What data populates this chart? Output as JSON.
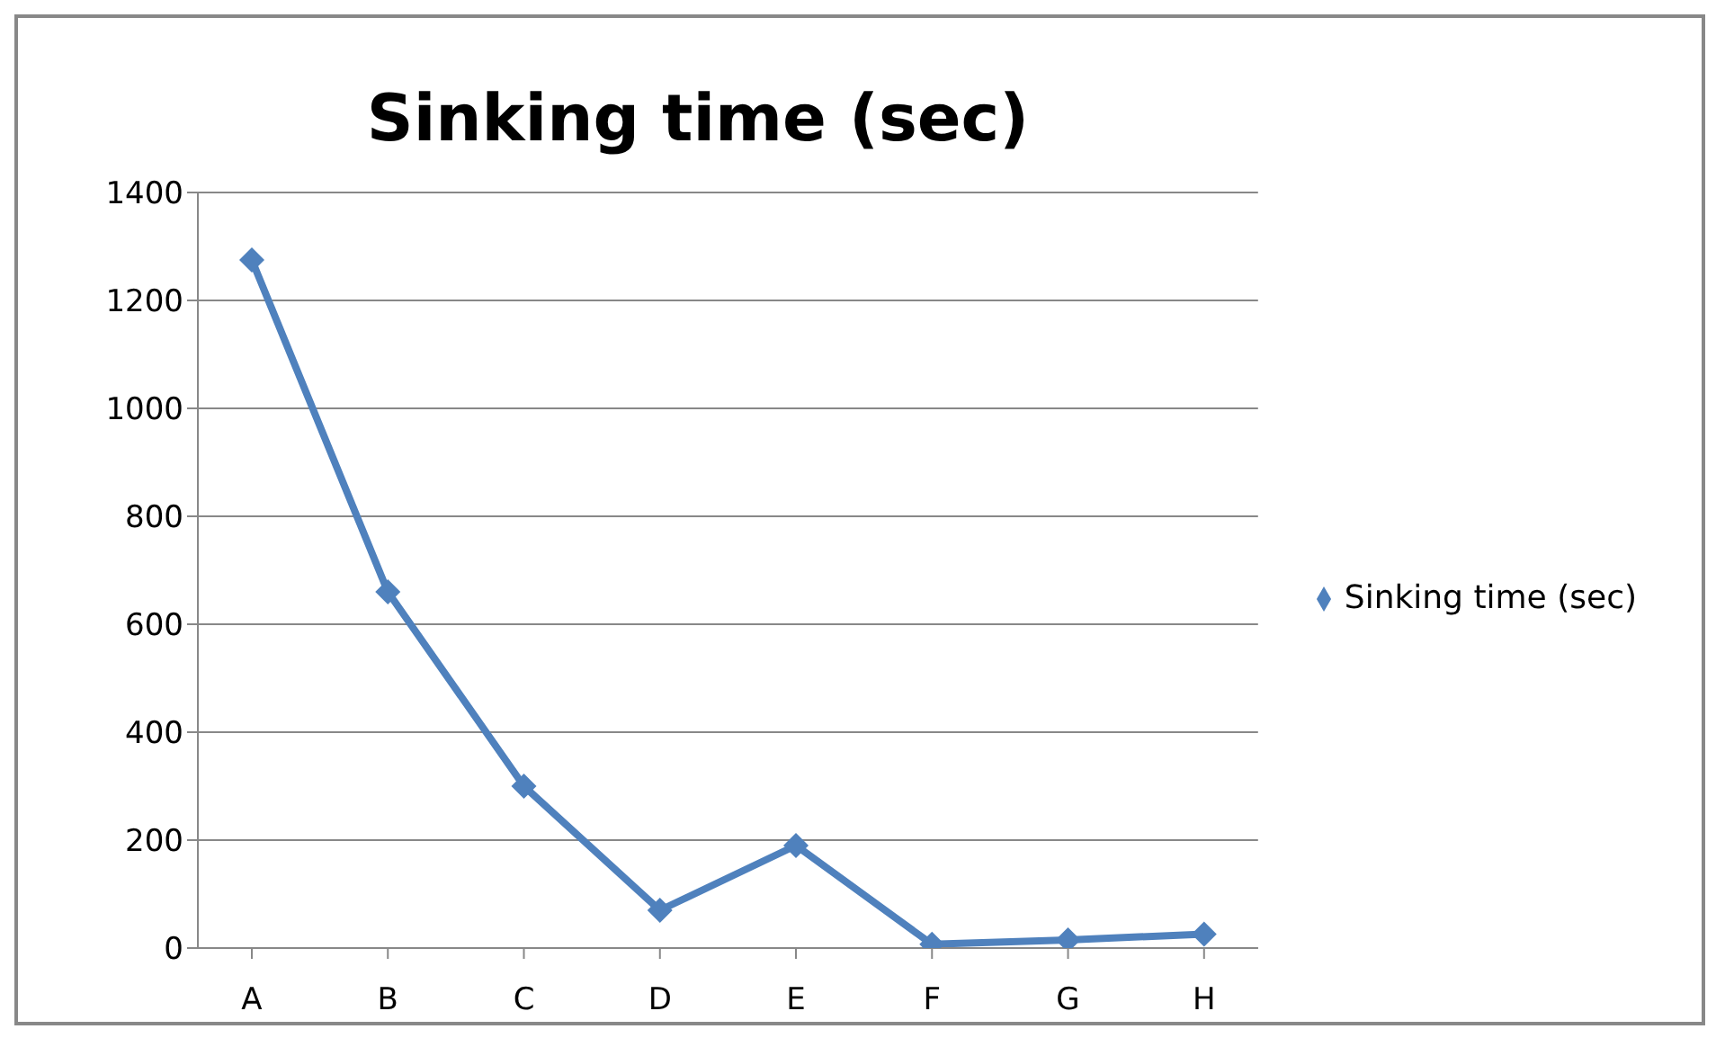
{
  "chart_data": {
    "type": "line",
    "title": "Sinking time (sec)",
    "categories": [
      "A",
      "B",
      "C",
      "D",
      "E",
      "F",
      "G",
      "H"
    ],
    "series": [
      {
        "name": "Sinking time (sec)",
        "color": "#4f81bd",
        "values": [
          1275,
          660,
          300,
          70,
          190,
          7,
          15,
          26
        ]
      }
    ],
    "ylim": [
      0,
      1400
    ],
    "yticks": [
      0,
      200,
      400,
      600,
      800,
      1000,
      1200,
      1400
    ],
    "grid": "y",
    "legend": "right",
    "marker": "diamond",
    "line_style": "solid"
  }
}
